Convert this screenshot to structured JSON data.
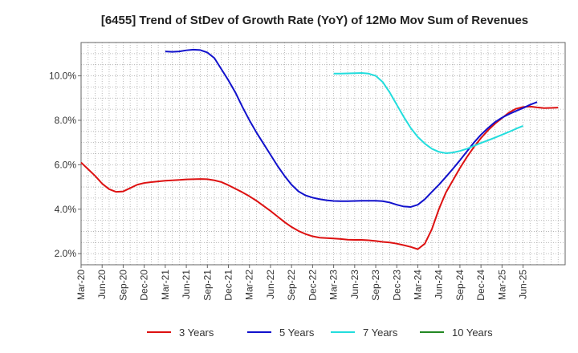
{
  "chart_data": {
    "type": "line",
    "title": "[6455]  Trend of StDev of Growth Rate (YoY) of 12Mo Mov Sum of Revenues",
    "xlabel": "",
    "ylabel": "",
    "x_ticks": [
      "Mar-20",
      "Jun-20",
      "Sep-20",
      "Dec-20",
      "Mar-21",
      "Jun-21",
      "Sep-21",
      "Dec-21",
      "Mar-22",
      "Jun-22",
      "Sep-22",
      "Dec-22",
      "Mar-23",
      "Jun-23",
      "Sep-23",
      "Dec-23",
      "Mar-24",
      "Jun-24",
      "Sep-24",
      "Dec-24",
      "Mar-25",
      "Jun-25"
    ],
    "y_ticks": [
      "2.0%",
      "4.0%",
      "6.0%",
      "8.0%",
      "10.0%"
    ],
    "y_tick_values": [
      2,
      4,
      6,
      8,
      10
    ],
    "ylim": [
      1.5,
      11.5
    ],
    "x_range_months": [
      0,
      63
    ],
    "grid": true,
    "legend_position": "bottom",
    "series": [
      {
        "name": "3 Years",
        "color": "#dd1111",
        "points": [
          [
            0,
            6.1
          ],
          [
            1,
            5.8
          ],
          [
            2,
            5.5
          ],
          [
            3,
            5.15
          ],
          [
            4,
            4.9
          ],
          [
            5,
            4.78
          ],
          [
            6,
            4.8
          ],
          [
            7,
            4.95
          ],
          [
            8,
            5.1
          ],
          [
            9,
            5.18
          ],
          [
            10,
            5.22
          ],
          [
            11,
            5.25
          ],
          [
            12,
            5.28
          ],
          [
            13,
            5.3
          ],
          [
            14,
            5.32
          ],
          [
            15,
            5.34
          ],
          [
            16,
            5.35
          ],
          [
            17,
            5.36
          ],
          [
            18,
            5.35
          ],
          [
            19,
            5.3
          ],
          [
            20,
            5.22
          ],
          [
            21,
            5.08
          ],
          [
            22,
            4.92
          ],
          [
            23,
            4.76
          ],
          [
            24,
            4.58
          ],
          [
            25,
            4.38
          ],
          [
            26,
            4.15
          ],
          [
            27,
            3.92
          ],
          [
            28,
            3.67
          ],
          [
            29,
            3.42
          ],
          [
            30,
            3.2
          ],
          [
            31,
            3.02
          ],
          [
            32,
            2.88
          ],
          [
            33,
            2.78
          ],
          [
            34,
            2.72
          ],
          [
            35,
            2.7
          ],
          [
            36,
            2.68
          ],
          [
            37,
            2.66
          ],
          [
            38,
            2.63
          ],
          [
            39,
            2.62
          ],
          [
            40,
            2.62
          ],
          [
            41,
            2.6
          ],
          [
            42,
            2.57
          ],
          [
            43,
            2.53
          ],
          [
            44,
            2.5
          ],
          [
            45,
            2.45
          ],
          [
            46,
            2.38
          ],
          [
            47,
            2.3
          ],
          [
            48,
            2.2
          ],
          [
            49,
            2.45
          ],
          [
            50,
            3.1
          ],
          [
            51,
            4.0
          ],
          [
            52,
            4.75
          ],
          [
            53,
            5.3
          ],
          [
            54,
            5.85
          ],
          [
            55,
            6.35
          ],
          [
            56,
            6.8
          ],
          [
            57,
            7.2
          ],
          [
            58,
            7.55
          ],
          [
            59,
            7.85
          ],
          [
            60,
            8.1
          ],
          [
            61,
            8.35
          ],
          [
            62,
            8.52
          ],
          [
            63,
            8.6
          ],
          [
            64,
            8.62
          ],
          [
            65,
            8.58
          ],
          [
            66,
            8.55
          ],
          [
            67,
            8.56
          ],
          [
            68,
            8.57
          ]
        ]
      },
      {
        "name": "5 Years",
        "color": "#1111cc",
        "points": [
          [
            12,
            11.1
          ],
          [
            13,
            11.08
          ],
          [
            14,
            11.1
          ],
          [
            15,
            11.15
          ],
          [
            16,
            11.18
          ],
          [
            17,
            11.16
          ],
          [
            18,
            11.05
          ],
          [
            19,
            10.8
          ],
          [
            20,
            10.3
          ],
          [
            21,
            9.8
          ],
          [
            22,
            9.25
          ],
          [
            23,
            8.6
          ],
          [
            24,
            8.0
          ],
          [
            25,
            7.45
          ],
          [
            26,
            6.95
          ],
          [
            27,
            6.45
          ],
          [
            28,
            5.95
          ],
          [
            29,
            5.5
          ],
          [
            30,
            5.1
          ],
          [
            31,
            4.8
          ],
          [
            32,
            4.62
          ],
          [
            33,
            4.52
          ],
          [
            34,
            4.45
          ],
          [
            35,
            4.4
          ],
          [
            36,
            4.37
          ],
          [
            37,
            4.36
          ],
          [
            38,
            4.36
          ],
          [
            39,
            4.37
          ],
          [
            40,
            4.38
          ],
          [
            41,
            4.38
          ],
          [
            42,
            4.38
          ],
          [
            43,
            4.36
          ],
          [
            44,
            4.3
          ],
          [
            45,
            4.2
          ],
          [
            46,
            4.12
          ],
          [
            47,
            4.1
          ],
          [
            48,
            4.2
          ],
          [
            49,
            4.45
          ],
          [
            50,
            4.78
          ],
          [
            51,
            5.1
          ],
          [
            52,
            5.45
          ],
          [
            53,
            5.82
          ],
          [
            54,
            6.2
          ],
          [
            55,
            6.6
          ],
          [
            56,
            7.0
          ],
          [
            57,
            7.35
          ],
          [
            58,
            7.65
          ],
          [
            59,
            7.92
          ],
          [
            60,
            8.12
          ],
          [
            61,
            8.28
          ],
          [
            62,
            8.42
          ],
          [
            63,
            8.55
          ],
          [
            64,
            8.7
          ],
          [
            65,
            8.82
          ]
        ]
      },
      {
        "name": "7 Years",
        "color": "#22dddd",
        "points": [
          [
            36,
            10.1
          ],
          [
            37,
            10.1
          ],
          [
            38,
            10.11
          ],
          [
            39,
            10.12
          ],
          [
            40,
            10.13
          ],
          [
            41,
            10.1
          ],
          [
            42,
            10.0
          ],
          [
            43,
            9.72
          ],
          [
            44,
            9.25
          ],
          [
            45,
            8.7
          ],
          [
            46,
            8.15
          ],
          [
            47,
            7.65
          ],
          [
            48,
            7.25
          ],
          [
            49,
            6.95
          ],
          [
            50,
            6.72
          ],
          [
            51,
            6.58
          ],
          [
            52,
            6.52
          ],
          [
            53,
            6.55
          ],
          [
            54,
            6.62
          ],
          [
            55,
            6.72
          ],
          [
            56,
            6.85
          ],
          [
            57,
            6.98
          ],
          [
            58,
            7.1
          ],
          [
            59,
            7.22
          ],
          [
            60,
            7.35
          ],
          [
            61,
            7.48
          ],
          [
            62,
            7.62
          ],
          [
            63,
            7.75
          ]
        ]
      },
      {
        "name": "10 Years",
        "color": "#228822",
        "points": []
      }
    ]
  }
}
